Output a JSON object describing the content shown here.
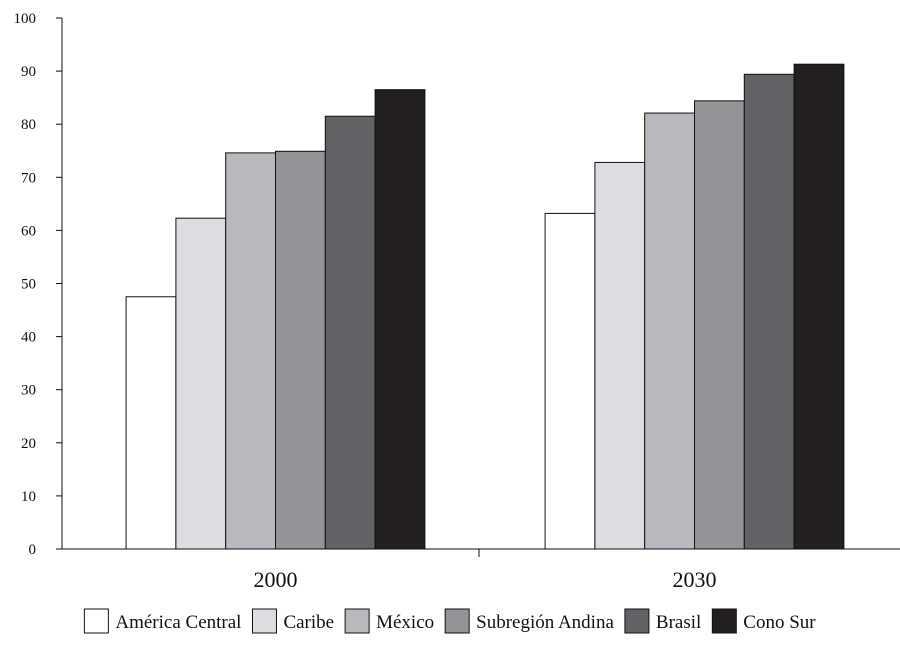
{
  "chart_data": {
    "type": "bar",
    "title": "",
    "xlabel": "",
    "ylabel": "",
    "ylim": [
      0,
      100
    ],
    "yticks": [
      0,
      10,
      20,
      30,
      40,
      50,
      60,
      70,
      80,
      90,
      100
    ],
    "categories": [
      "2000",
      "2030"
    ],
    "grid": false,
    "legend_position": "bottom",
    "series": [
      {
        "name": "América Central",
        "color": "#ffffff",
        "values": [
          47.5,
          63.2
        ]
      },
      {
        "name": "Caribe",
        "color": "#dcdde0",
        "values": [
          62.3,
          72.8
        ]
      },
      {
        "name": "México",
        "color": "#b8b9be",
        "values": [
          74.6,
          82.1
        ]
      },
      {
        "name": "Subregión Andina",
        "color": "#939498",
        "values": [
          74.9,
          84.4
        ]
      },
      {
        "name": "Brasil",
        "color": "#616265",
        "values": [
          81.5,
          89.4
        ]
      },
      {
        "name": "Cono Sur",
        "color": "#231f20",
        "values": [
          86.5,
          91.3
        ]
      }
    ]
  }
}
